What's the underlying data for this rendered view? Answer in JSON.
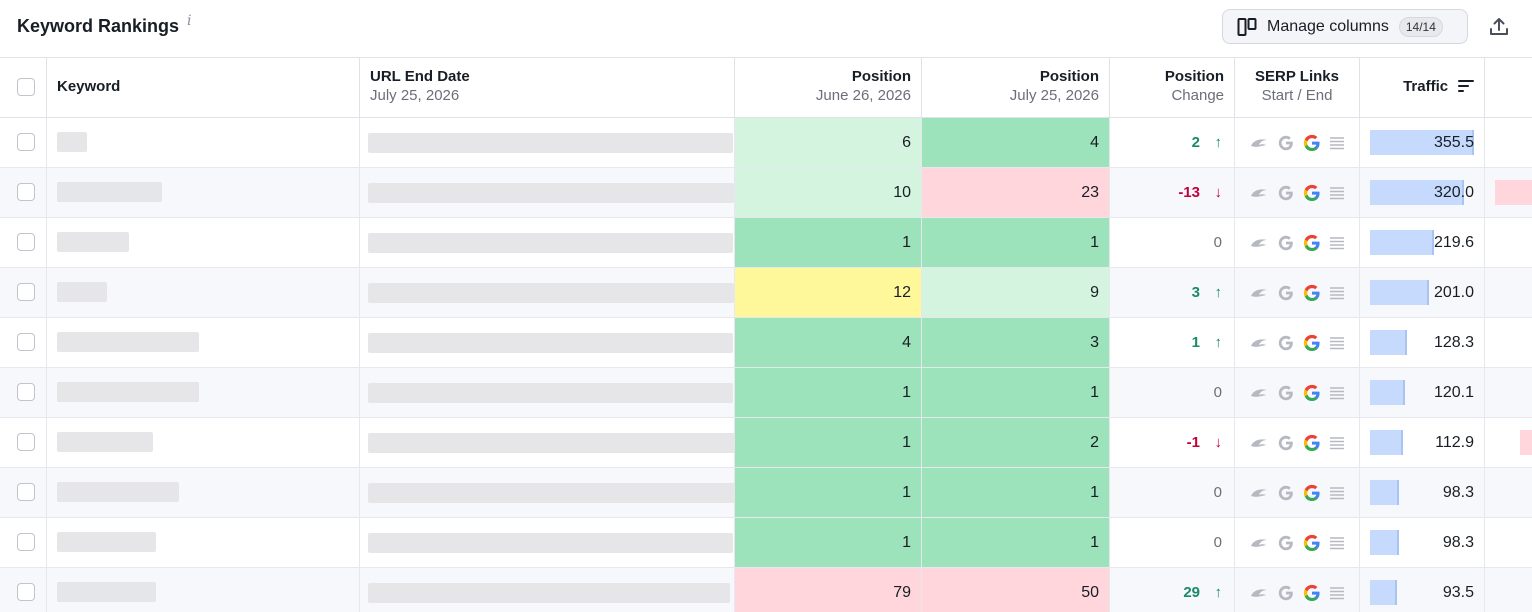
{
  "header": {
    "title": "Keyword Rankings",
    "info_icon": "info-icon",
    "manage_columns_label": "Manage columns",
    "manage_columns_badge": "14/14",
    "export_icon": "export-icon"
  },
  "columns": {
    "keyword": "Keyword",
    "url_title": "URL End Date",
    "url_sub": "July 25, 2026",
    "pos_start_title": "Position",
    "pos_start_sub": "June 26, 2026",
    "pos_end_title": "Position",
    "pos_end_sub": "July 25, 2026",
    "change_title": "Position",
    "change_sub": "Change",
    "serp_title": "SERP Links",
    "serp_sub": "Start / End",
    "traffic_title": "Traffic"
  },
  "colors": {
    "pos_top": "#9ce2bb",
    "pos_good": "#d4f4e0",
    "pos_mid": "#fff89a",
    "pos_bad": "#ffd6dc",
    "traffic_bar": "#c6dafd",
    "up": "#1a8a6a",
    "down": "#c4003a"
  },
  "rows": [
    {
      "pos_start": "6",
      "pos_end": "4",
      "change": "2",
      "direction": "up",
      "traffic": "355.5",
      "traffic_frac": 1.0,
      "start_color": "#d4f4e0",
      "end_color": "#9ce2bb"
    },
    {
      "pos_start": "10",
      "pos_end": "23",
      "change": "-13",
      "direction": "down",
      "traffic": "320.0",
      "traffic_frac": 0.9,
      "start_color": "#d4f4e0",
      "end_color": "#ffd6dc"
    },
    {
      "pos_start": "1",
      "pos_end": "1",
      "change": "0",
      "direction": "none",
      "traffic": "219.6",
      "traffic_frac": 0.62,
      "start_color": "#9ce2bb",
      "end_color": "#9ce2bb"
    },
    {
      "pos_start": "12",
      "pos_end": "9",
      "change": "3",
      "direction": "up",
      "traffic": "201.0",
      "traffic_frac": 0.57,
      "start_color": "#fff89a",
      "end_color": "#d4f4e0"
    },
    {
      "pos_start": "4",
      "pos_end": "3",
      "change": "1",
      "direction": "up",
      "traffic": "128.3",
      "traffic_frac": 0.36,
      "start_color": "#9ce2bb",
      "end_color": "#9ce2bb"
    },
    {
      "pos_start": "1",
      "pos_end": "1",
      "change": "0",
      "direction": "none",
      "traffic": "120.1",
      "traffic_frac": 0.34,
      "start_color": "#9ce2bb",
      "end_color": "#9ce2bb"
    },
    {
      "pos_start": "1",
      "pos_end": "2",
      "change": "-1",
      "direction": "down",
      "traffic": "112.9",
      "traffic_frac": 0.32,
      "start_color": "#9ce2bb",
      "end_color": "#9ce2bb"
    },
    {
      "pos_start": "1",
      "pos_end": "1",
      "change": "0",
      "direction": "none",
      "traffic": "98.3",
      "traffic_frac": 0.28,
      "start_color": "#9ce2bb",
      "end_color": "#9ce2bb"
    },
    {
      "pos_start": "1",
      "pos_end": "1",
      "change": "0",
      "direction": "none",
      "traffic": "98.3",
      "traffic_frac": 0.28,
      "start_color": "#9ce2bb",
      "end_color": "#9ce2bb"
    },
    {
      "pos_start": "79",
      "pos_end": "50",
      "change": "29",
      "direction": "up",
      "traffic": "93.5",
      "traffic_frac": 0.26,
      "start_color": "#ffd6dc",
      "end_color": "#ffd6dc"
    }
  ]
}
